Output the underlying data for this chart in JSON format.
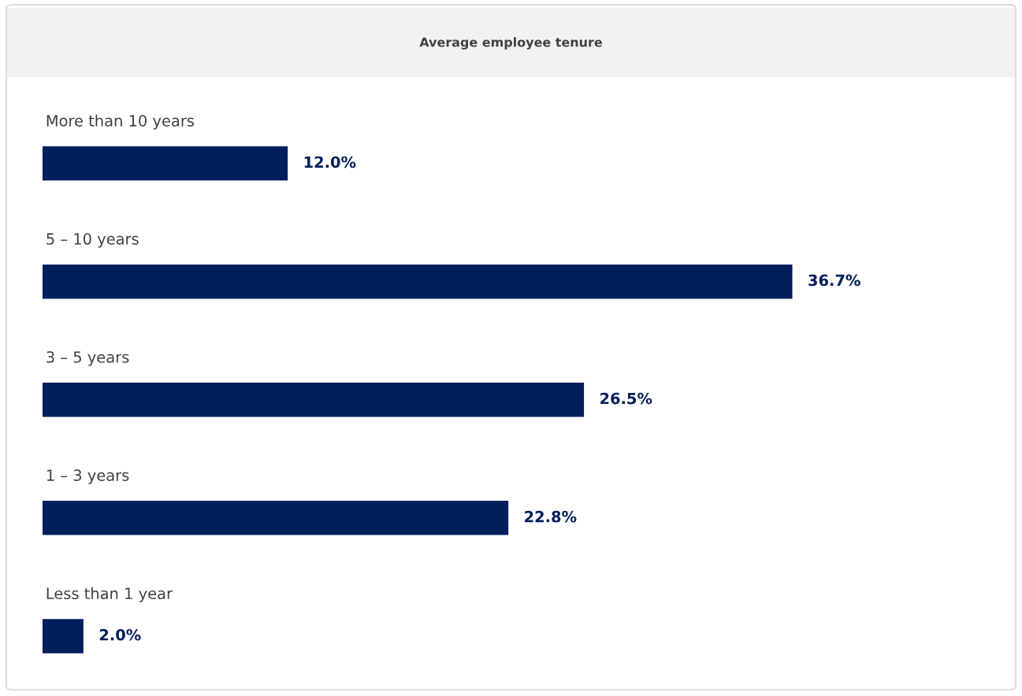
{
  "chart_data": {
    "type": "bar",
    "orientation": "horizontal",
    "title": "Average employee tenure",
    "categories": [
      "More than 10 years",
      "5 – 10 years",
      "3 – 5 years",
      "1 – 3 years",
      "Less than 1 year"
    ],
    "values": [
      12.0,
      36.7,
      26.5,
      22.8,
      2.0
    ],
    "value_labels": [
      "12.0%",
      "36.7%",
      "26.5%",
      "22.8%",
      "2.0%"
    ],
    "color": "#001f5b"
  }
}
